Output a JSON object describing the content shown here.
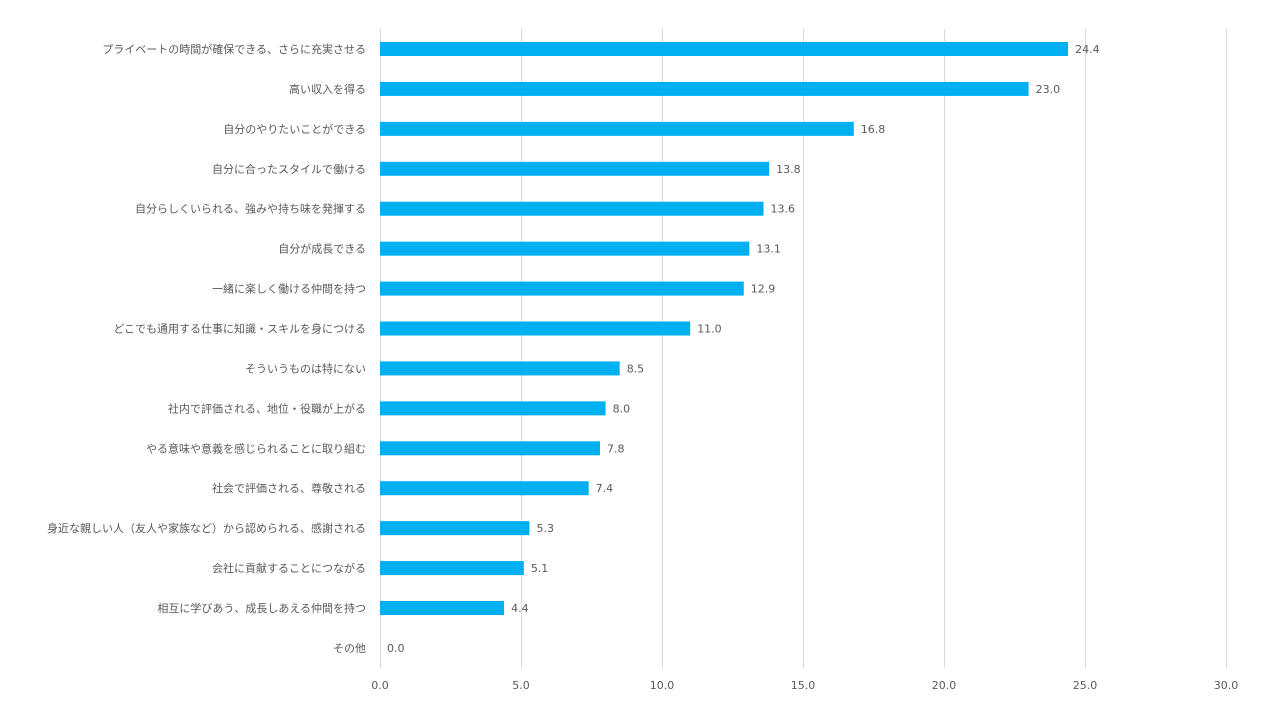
{
  "chart_data": {
    "type": "bar",
    "orientation": "horizontal",
    "categories": [
      "プライベートの時間が確保できる、さらに充実させる",
      "高い収入を得る",
      "自分のやりたいことができる",
      "自分に合ったスタイルで働ける",
      "自分らしくいられる、強みや持ち味を発揮する",
      "自分が成長できる",
      "一緒に楽しく働ける仲間を持つ",
      "どこでも通用する仕事に知識・スキルを身につける",
      "そういうものは特にない",
      "社内で評価される、地位・役職が上がる",
      "やる意味や意義を感じられることに取り組む",
      "社会で評価される、尊敬される",
      "身近な親しい人（友人や家族など）から認められる、感謝される",
      "会社に貢献することにつながる",
      "相互に学びあう、成長しあえる仲間を持つ",
      "その他"
    ],
    "values": [
      24.4,
      23.0,
      16.8,
      13.8,
      13.6,
      13.1,
      12.9,
      11.0,
      8.5,
      8.0,
      7.8,
      7.4,
      5.3,
      5.1,
      4.4,
      0.0
    ],
    "value_labels": [
      "24.4",
      "23.0",
      "16.8",
      "13.8",
      "13.6",
      "13.1",
      "12.9",
      "11.0",
      "8.5",
      "8.0",
      "7.8",
      "7.4",
      "5.3",
      "5.1",
      "4.4",
      "0.0"
    ],
    "x_ticks": [
      "0.0",
      "5.0",
      "10.0",
      "15.0",
      "20.0",
      "25.0",
      "30.0"
    ],
    "xlim": [
      0,
      30
    ],
    "title": "",
    "xlabel": "",
    "ylabel": "",
    "grid": true,
    "legend": "none",
    "bar_color": "#00B0F0"
  }
}
